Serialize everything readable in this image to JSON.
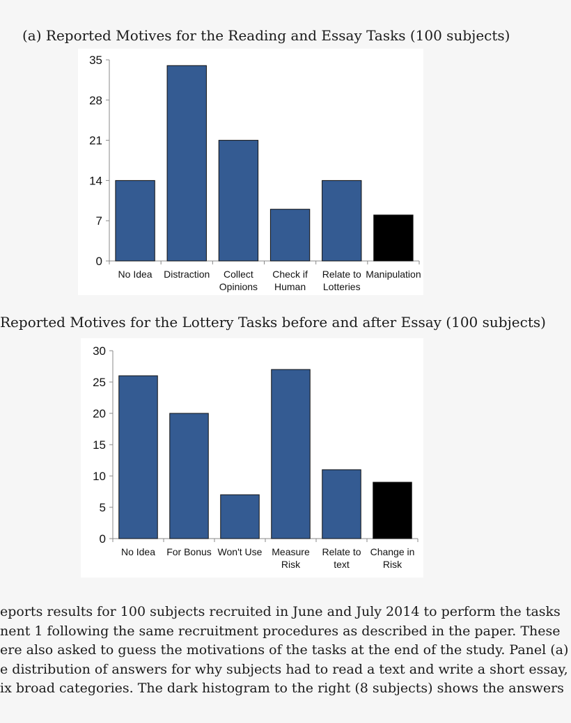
{
  "chart_data": [
    {
      "type": "bar",
      "title": "(a) Reported Motives for the Reading and Essay Tasks (100 subjects)",
      "categories": [
        [
          "No Idea"
        ],
        [
          "Distraction"
        ],
        [
          "Collect",
          "Opinions"
        ],
        [
          "Check if",
          "Human"
        ],
        [
          "Relate to",
          "Lotteries"
        ],
        [
          "Manipulation"
        ]
      ],
      "values": [
        14,
        34,
        21,
        9,
        14,
        8
      ],
      "colors": [
        "#345b92",
        "#345b92",
        "#345b92",
        "#345b92",
        "#345b92",
        "#000000"
      ],
      "yticks": [
        0,
        7,
        14,
        21,
        28,
        35
      ],
      "ylim": [
        0,
        35
      ],
      "xlabel": "",
      "ylabel": "",
      "grid": false
    },
    {
      "type": "bar",
      "title": "Reported Motives for the Lottery Tasks before and after Essay (100 subjects)",
      "categories": [
        [
          "No Idea"
        ],
        [
          "For Bonus"
        ],
        [
          "Won't Use"
        ],
        [
          "Measure",
          "Risk"
        ],
        [
          "Relate to",
          "text"
        ],
        [
          "Change in",
          "Risk"
        ]
      ],
      "values": [
        26,
        20,
        7,
        27,
        11,
        9
      ],
      "colors": [
        "#345b92",
        "#345b92",
        "#345b92",
        "#345b92",
        "#345b92",
        "#000000"
      ],
      "yticks": [
        0,
        5,
        10,
        15,
        20,
        25,
        30
      ],
      "ylim": [
        0,
        30
      ],
      "xlabel": "",
      "ylabel": "",
      "grid": false
    }
  ],
  "paragraph": {
    "lines": [
      "eports results for 100 subjects recruited in June and July 2014 to perform the tasks",
      "nent 1 following the same recruitment procedures as described in the paper.  These",
      "ere also asked to guess the motivations of the tasks at the end of the study. Panel (a)",
      "e distribution of answers for why subjects had to read a text and write a short essay,",
      "ix broad categories. The dark histogram to the right (8 subjects) shows the answers"
    ]
  }
}
